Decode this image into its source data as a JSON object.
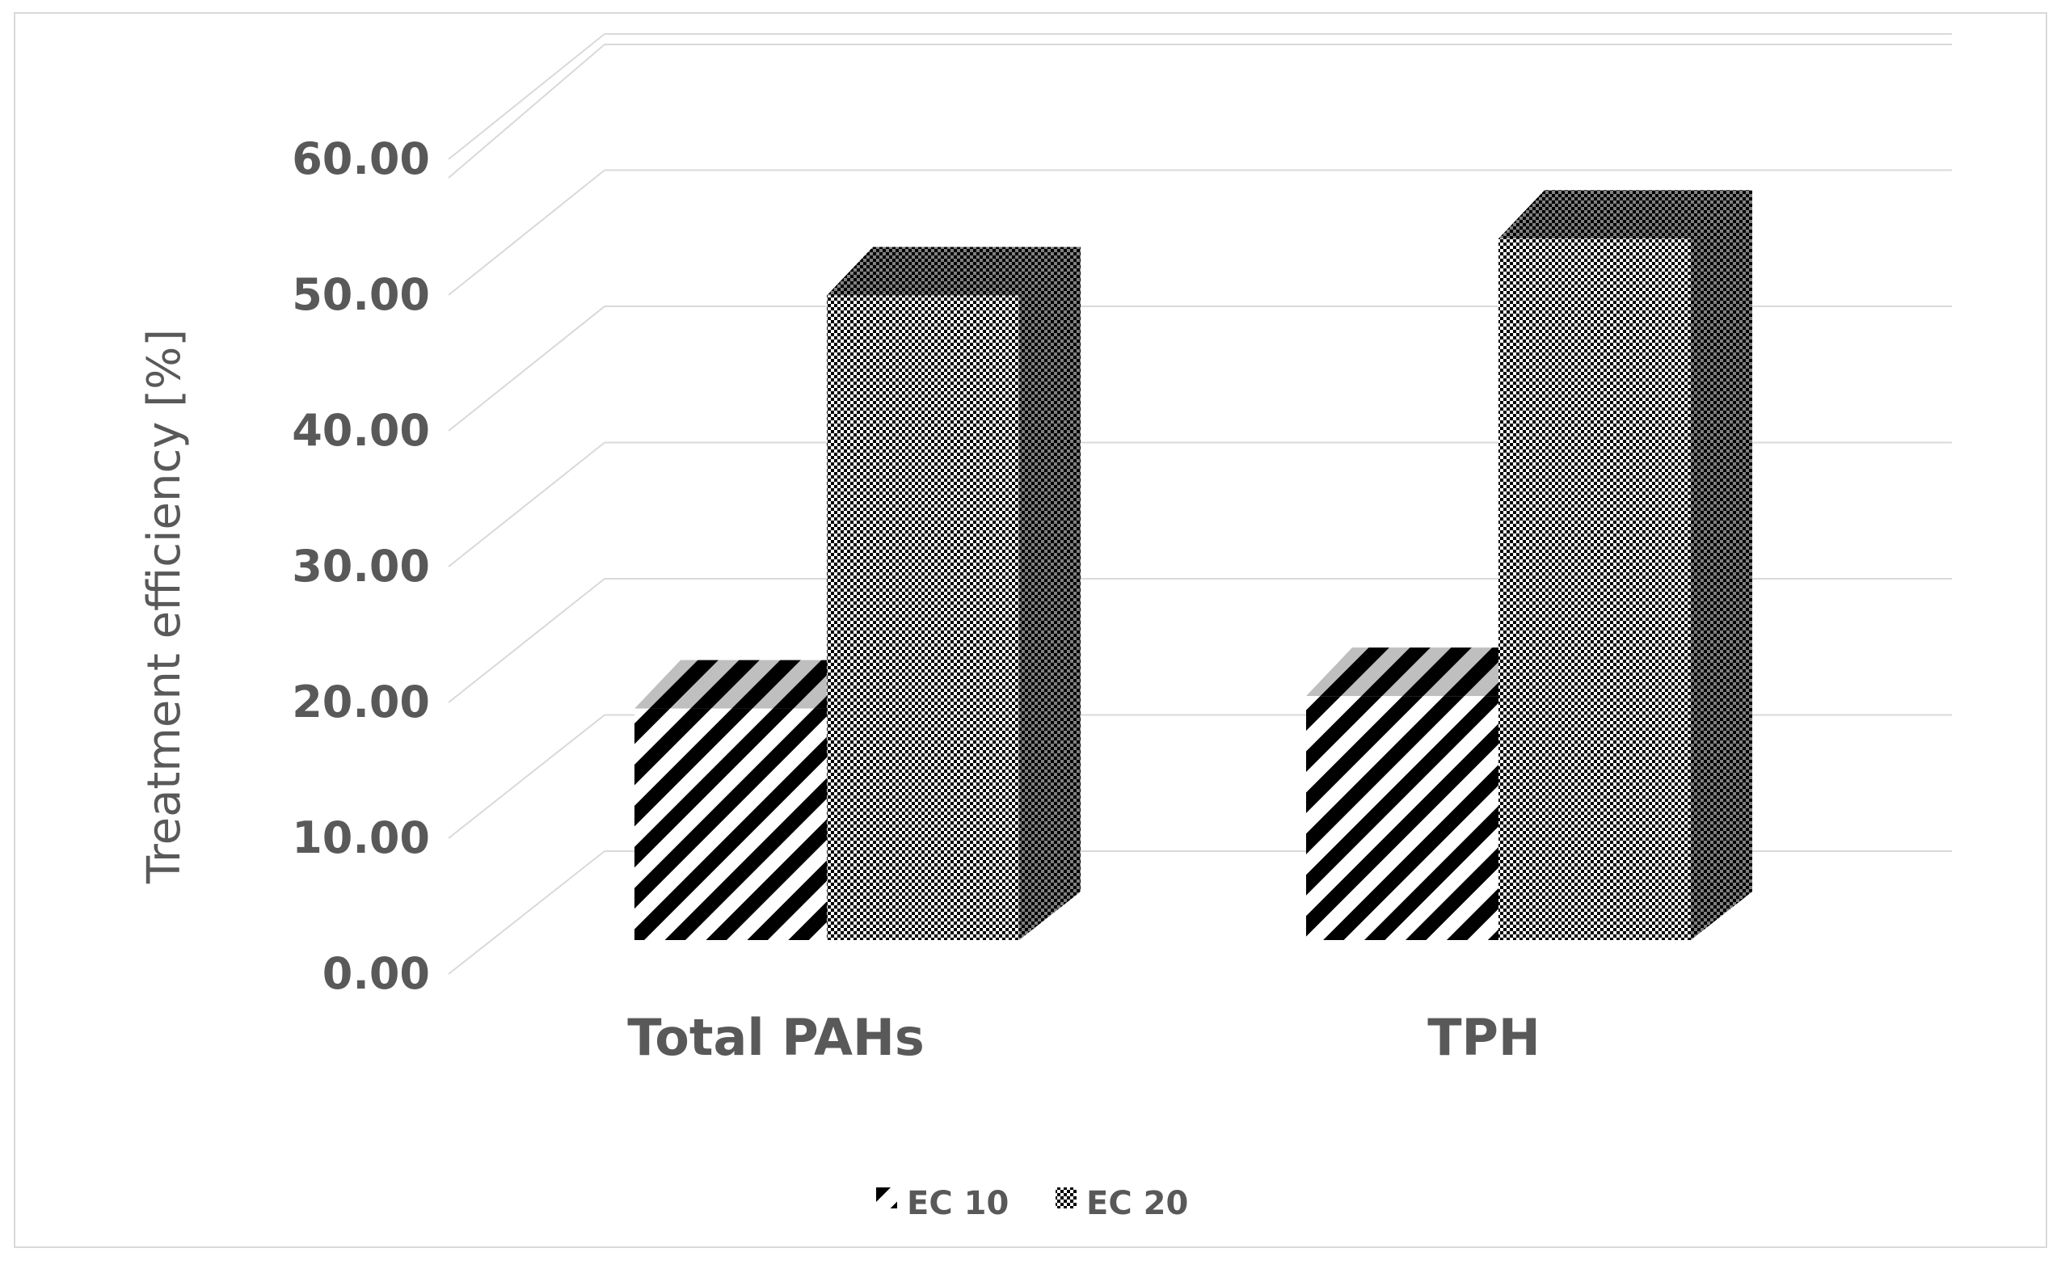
{
  "chart_data": {
    "type": "bar",
    "style": "3d-column",
    "categories": [
      "Total PAHs",
      "TPH"
    ],
    "series": [
      {
        "name": "EC 10",
        "values": [
          16.7,
          17.6
        ],
        "pattern": "diagonal-stripes"
      },
      {
        "name": "EC 20",
        "values": [
          46.5,
          50.6
        ],
        "pattern": "checkerboard"
      }
    ],
    "ylabel": "Treatment efficiency [%]",
    "xlabel": "",
    "ylim": [
      0,
      60
    ],
    "yticks": [
      "0.00",
      "10.00",
      "20.00",
      "30.00",
      "40.00",
      "50.00",
      "60.00"
    ],
    "grid": true,
    "legend": "bottom-center",
    "colors": {
      "bar": "#000000",
      "text": "#595959",
      "grid": "#d9d9d9",
      "border": "#d9d9d9",
      "top_face_stripe": "#bfbfbf"
    }
  }
}
